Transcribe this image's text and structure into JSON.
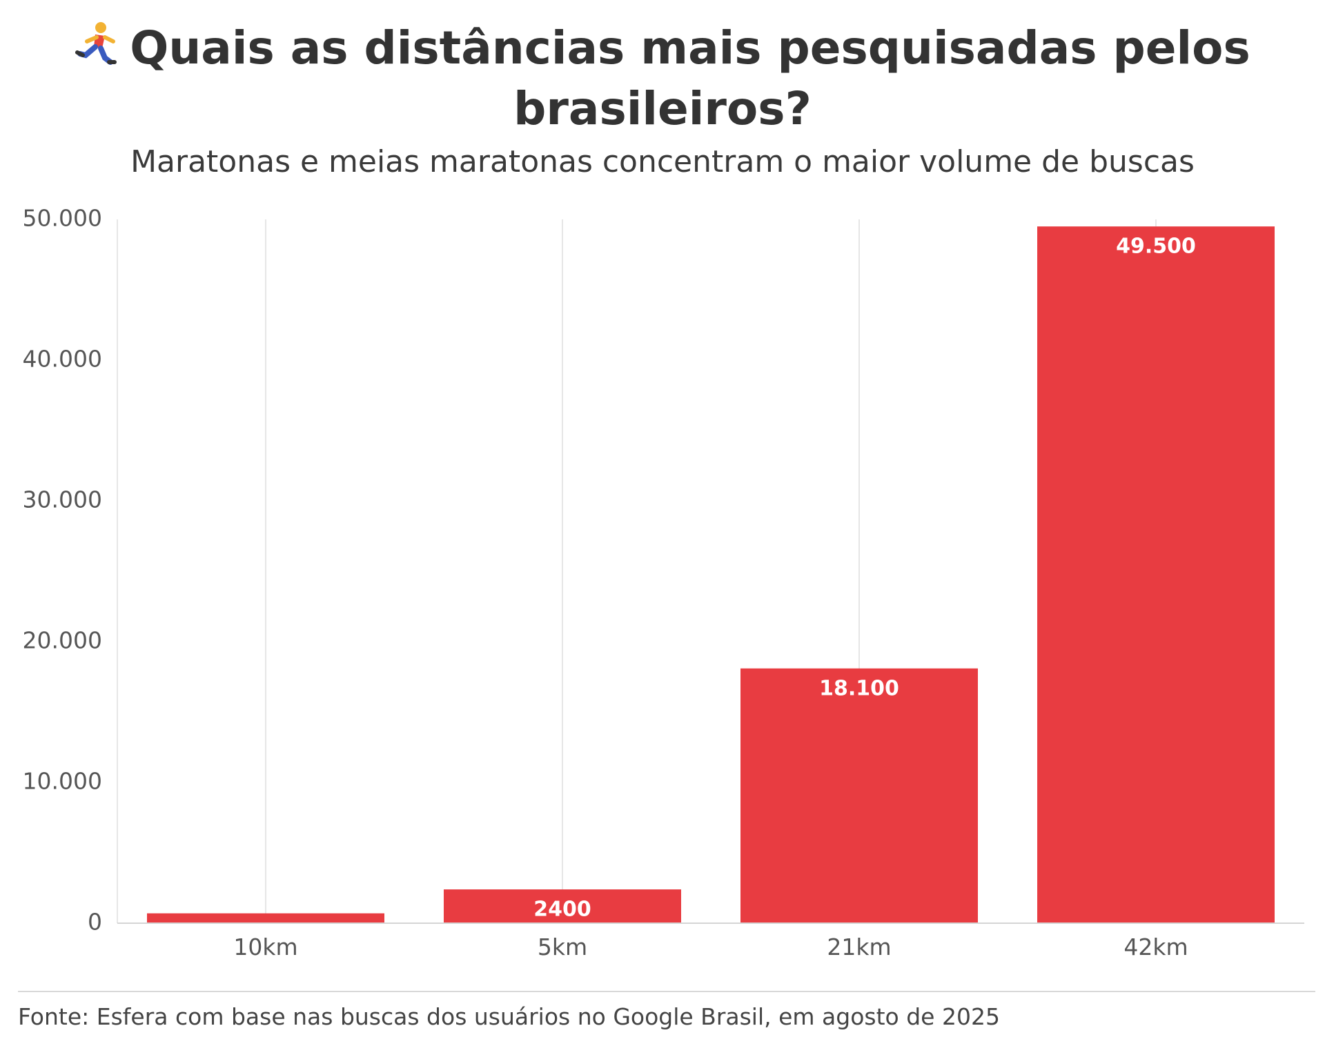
{
  "title": "Quais as distâncias mais pesquisadas pelos brasileiros?",
  "title_icon": "runner-icon",
  "subtitle": "Maratonas e meias maratonas concentram o maior volume de buscas",
  "source": "Fonte: Esfera com base nas buscas dos usuários no Google Brasil, em agosto de 2025",
  "colors": {
    "bar": "#e83c41",
    "grid": "#e6e6e6",
    "text": "#333333"
  },
  "chart_data": {
    "type": "bar",
    "categories": [
      "10km",
      "5km",
      "21km",
      "42km"
    ],
    "values": [
      700,
      2400,
      18100,
      49500
    ],
    "data_labels": [
      "",
      "2400",
      "18.100",
      "49.500"
    ],
    "yticks": [
      0,
      10000,
      20000,
      30000,
      40000,
      50000
    ],
    "ytick_labels": [
      "0",
      "10.000",
      "20.000",
      "30.000",
      "40.000",
      "50.000"
    ],
    "ylim": [
      0,
      50000
    ],
    "xlabel": "",
    "ylabel": "",
    "grid": "vertical"
  }
}
